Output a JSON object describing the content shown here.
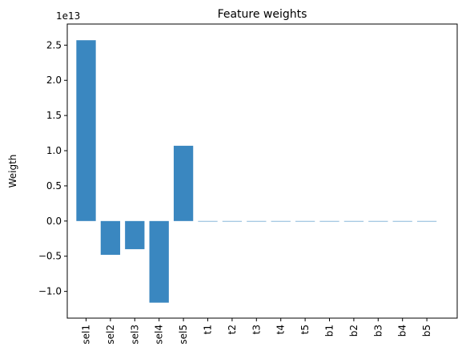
{
  "chart_data": {
    "type": "bar",
    "title": "Feature weights",
    "xlabel": "",
    "ylabel": "Weigth",
    "y_offset_text": "1e13",
    "categories": [
      "sel1",
      "sel2",
      "sel3",
      "sel4",
      "sel5",
      "t1",
      "t2",
      "t3",
      "t4",
      "t5",
      "b1",
      "b2",
      "b3",
      "b4",
      "b5"
    ],
    "values": [
      2.57,
      -0.48,
      -0.4,
      -1.16,
      1.07,
      0,
      0,
      0,
      0,
      0,
      0,
      0,
      0,
      0,
      0
    ],
    "value_scale": "1e13",
    "ylim": [
      -1.38,
      2.8
    ],
    "yticks": [
      -1.0,
      -0.5,
      0.0,
      0.5,
      1.0,
      1.5,
      2.0,
      2.5
    ],
    "ytick_labels": [
      "−1.0",
      "−0.5",
      "0.0",
      "0.5",
      "1.0",
      "1.5",
      "2.0",
      "2.5"
    ],
    "bar_color": "#3a87c0",
    "grid": false,
    "legend": "none"
  }
}
